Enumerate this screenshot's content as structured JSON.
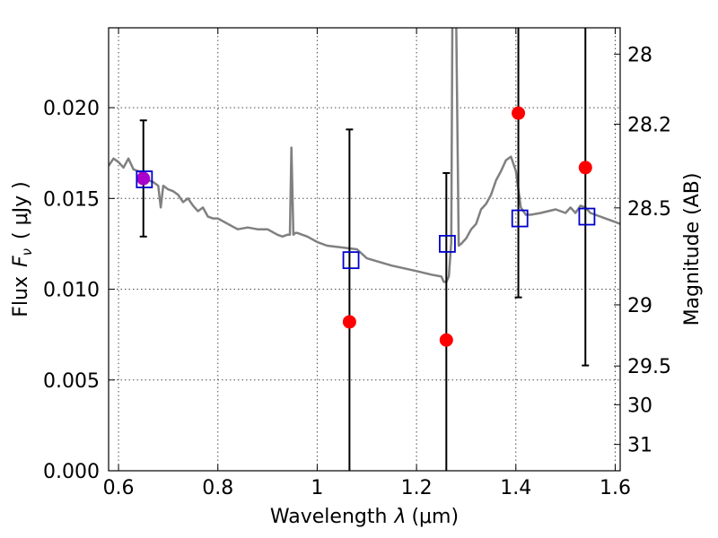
{
  "chart_data": {
    "type": "scatter",
    "xlabel": "Wavelength",
    "xlabel_symbol": "λ",
    "xlabel_unit": "(μm)",
    "ylabel": "Flux",
    "ylabel_symbol": "F",
    "ylabel_subscript": "ν",
    "ylabel_unit": "( μJy )",
    "y2label": "Magnitude (AB)",
    "xlim": [
      0.58,
      1.61
    ],
    "ylim": [
      0.0,
      0.0244
    ],
    "grid": true,
    "xticks": [
      0.6,
      0.8,
      1.0,
      1.2,
      1.4,
      1.6
    ],
    "xtick_labels": [
      "0.6",
      "0.8",
      "1",
      "1.2",
      "1.4",
      "1.6"
    ],
    "yticks": [
      0.0,
      0.005,
      0.01,
      0.015,
      0.02
    ],
    "ytick_labels": [
      "0.000",
      "0.005",
      "0.010",
      "0.015",
      "0.020"
    ],
    "y2ticks": [
      {
        "label": "28",
        "flux": 0.02295
      },
      {
        "label": "28.2",
        "flux": 0.01909
      },
      {
        "label": "28.5",
        "flux": 0.01448
      },
      {
        "label": "29",
        "flux": 0.00914
      },
      {
        "label": "29.5",
        "flux": 0.00577
      },
      {
        "label": "30",
        "flux": 0.00364
      },
      {
        "label": "31",
        "flux": 0.00145
      }
    ],
    "colors": {
      "model": "#808080",
      "observed": "#ff0000",
      "model_photometry": "#0000cc",
      "overlap": "#aa00cc",
      "errorbar": "#000000"
    },
    "observed": {
      "x": [
        0.65,
        1.065,
        1.26,
        1.405,
        1.54
      ],
      "y": [
        0.0161,
        0.0082,
        0.0072,
        0.0197,
        0.0167
      ],
      "yerr_low": [
        0.0129,
        0.0,
        0.0,
        0.00955,
        0.0058
      ],
      "yerr_high": [
        0.0193,
        0.0188,
        0.0164,
        0.025,
        0.025
      ]
    },
    "model_photometry": {
      "x": [
        0.652,
        1.068,
        1.262,
        1.408,
        1.543
      ],
      "y": [
        0.01605,
        0.0116,
        0.0125,
        0.0139,
        0.014
      ]
    },
    "model_spectrum": {
      "x": [
        0.58,
        0.59,
        0.6,
        0.61,
        0.62,
        0.63,
        0.64,
        0.65,
        0.66,
        0.67,
        0.68,
        0.685,
        0.69,
        0.7,
        0.71,
        0.72,
        0.73,
        0.74,
        0.75,
        0.76,
        0.77,
        0.78,
        0.79,
        0.8,
        0.82,
        0.84,
        0.86,
        0.88,
        0.9,
        0.92,
        0.93,
        0.94,
        0.945,
        0.948,
        0.952,
        0.956,
        0.96,
        0.98,
        1.0,
        1.02,
        1.05,
        1.08,
        1.1,
        1.15,
        1.2,
        1.23,
        1.25,
        1.255,
        1.26,
        1.265,
        1.27,
        1.272,
        1.275,
        1.28,
        1.285,
        1.29,
        1.3,
        1.31,
        1.32,
        1.33,
        1.34,
        1.35,
        1.36,
        1.37,
        1.38,
        1.39,
        1.4,
        1.41,
        1.42,
        1.43,
        1.45,
        1.48,
        1.5,
        1.51,
        1.52,
        1.53,
        1.54,
        1.55,
        1.56,
        1.58,
        1.6,
        1.61
      ],
      "y": [
        0.0168,
        0.0172,
        0.017,
        0.0167,
        0.0172,
        0.0166,
        0.0165,
        0.0163,
        0.016,
        0.0159,
        0.0157,
        0.0145,
        0.0157,
        0.0155,
        0.0154,
        0.0152,
        0.0148,
        0.015,
        0.0146,
        0.0143,
        0.0145,
        0.014,
        0.0139,
        0.0139,
        0.0136,
        0.0133,
        0.0134,
        0.0133,
        0.0133,
        0.013,
        0.0129,
        0.013,
        0.013,
        0.0178,
        0.013,
        0.0131,
        0.0131,
        0.0129,
        0.0126,
        0.0124,
        0.0123,
        0.0122,
        0.0117,
        0.0113,
        0.011,
        0.0108,
        0.0107,
        0.0104,
        0.0104,
        0.0107,
        0.0126,
        0.0244,
        0.027,
        0.0244,
        0.0124,
        0.0125,
        0.0128,
        0.0133,
        0.0136,
        0.0144,
        0.0147,
        0.0152,
        0.016,
        0.0165,
        0.0171,
        0.0173,
        0.0165,
        0.0145,
        0.0141,
        0.0141,
        0.0142,
        0.0144,
        0.0142,
        0.0145,
        0.0142,
        0.0146,
        0.0145,
        0.0142,
        0.0141,
        0.0139,
        0.0137,
        0.0136
      ]
    }
  }
}
